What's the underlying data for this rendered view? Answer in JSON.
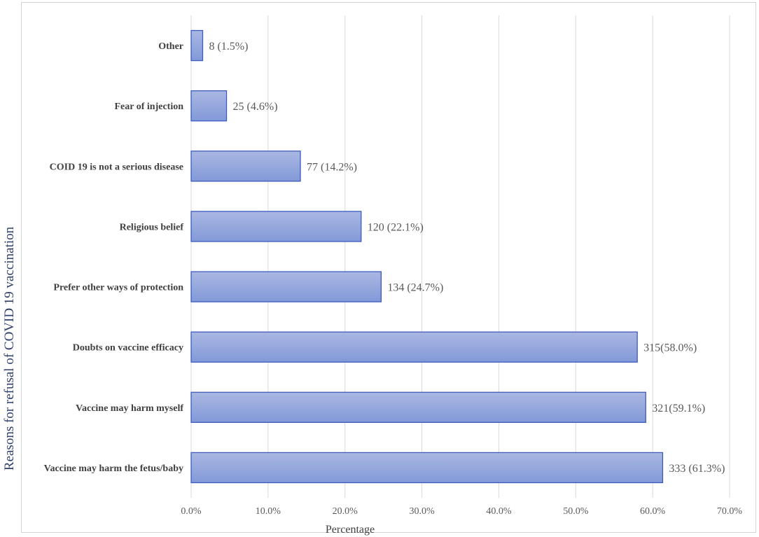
{
  "chart_data": {
    "type": "bar",
    "orientation": "horizontal",
    "categories": [
      "Vaccine may harm the fetus/baby",
      "Vaccine may harm myself",
      "Doubts on vaccine efficacy",
      "Prefer other ways of protection",
      "Religious belief",
      "COID 19 is not a serious disease",
      "Fear of injection",
      "Other"
    ],
    "values": [
      61.3,
      59.1,
      58.0,
      24.7,
      22.1,
      14.2,
      4.6,
      1.5
    ],
    "data_labels": [
      "333 (61.3%)",
      "321(59.1%)",
      "315(58.0%)",
      "134 (24.7%)",
      "120 (22.1%)",
      "77 (14.2%)",
      "25 (4.6%)",
      "8 (1.5%)"
    ],
    "xlim": [
      0,
      70
    ],
    "xticks": [
      "0.0%",
      "10.0%",
      "20.0%",
      "30.0%",
      "40.0%",
      "50.0%",
      "60.0%",
      "70.0%"
    ],
    "xlabel": "Percentage",
    "ylabel": "Reasons for refusal of COVID 19 vaccination",
    "grid": "vertical",
    "bar_fill_top": "#aab7e2",
    "bar_fill_bottom": "#8299d8",
    "bar_stroke": "#3d5cbe"
  }
}
